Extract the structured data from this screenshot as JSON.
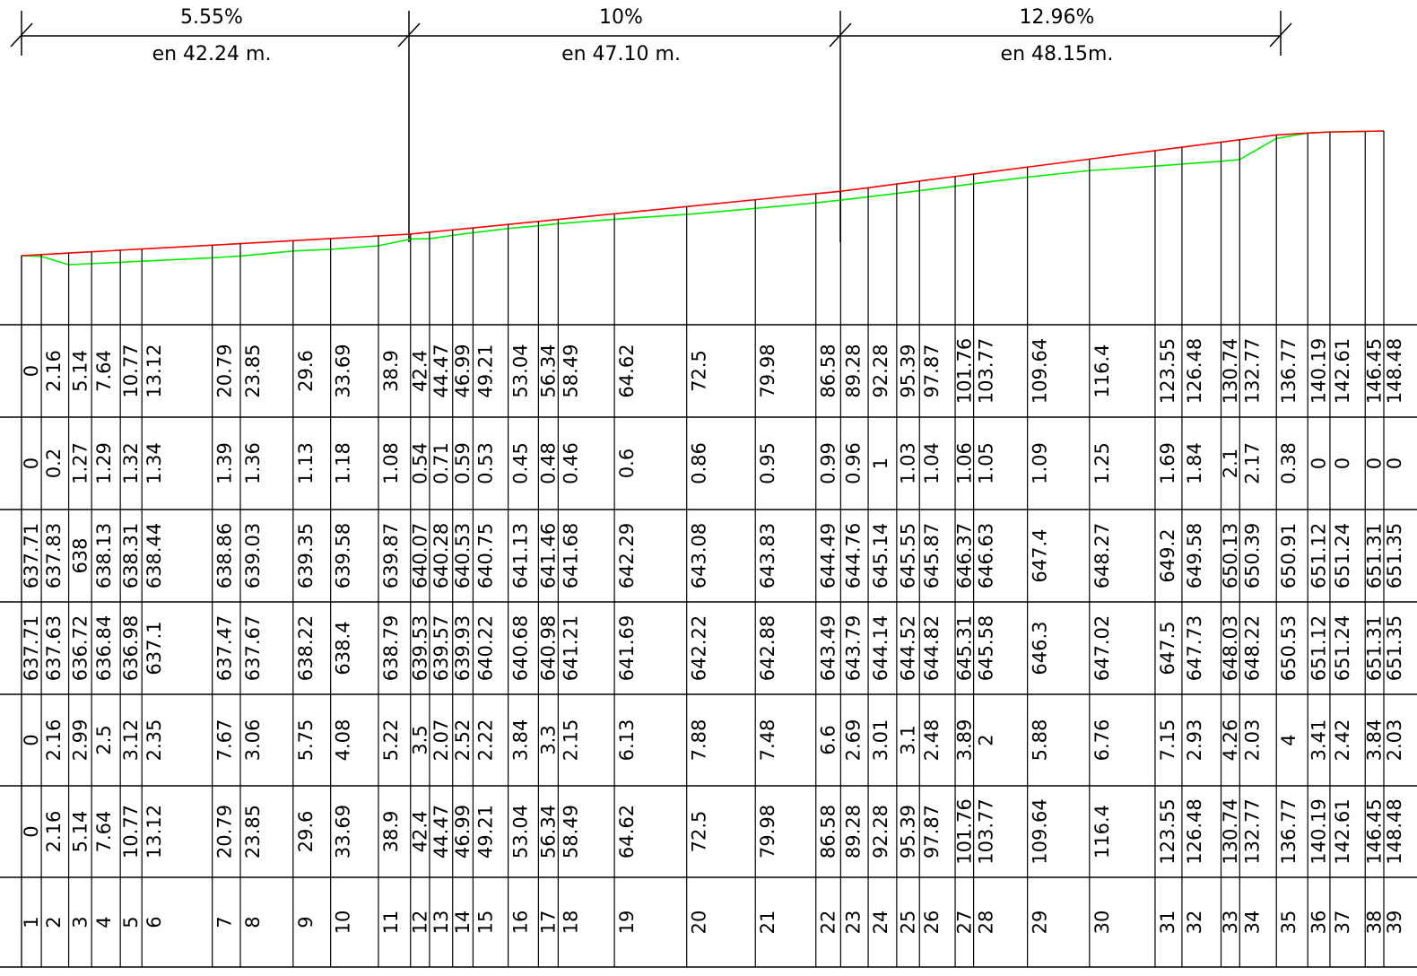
{
  "chart_data": {
    "type": "line",
    "segments": [
      {
        "grade": "5.55%",
        "length": "en  42.24  m."
      },
      {
        "grade": "10%",
        "length": "en  47.10  m."
      },
      {
        "grade": "12.96%",
        "length": "en  48.15m."
      }
    ],
    "series": [
      {
        "color": "#ff0000"
      },
      {
        "color": "#00ee00"
      }
    ],
    "columns": [
      {
        "d": "0",
        "c": "0",
        "rasante": "637.71",
        "terreno": "637.71",
        "p": "0",
        "dist": "0",
        "n": "1"
      },
      {
        "d": "2.16",
        "c": "0.2",
        "rasante": "637.83",
        "terreno": "637.63",
        "p": "2.16",
        "dist": "2.16",
        "n": "2"
      },
      {
        "d": "5.14",
        "c": "1.27",
        "rasante": "638",
        "terreno": "636.72",
        "p": "2.99",
        "dist": "5.14",
        "n": "3"
      },
      {
        "d": "7.64",
        "c": "1.29",
        "rasante": "638.13",
        "terreno": "636.84",
        "p": "2.5",
        "dist": "7.64",
        "n": "4"
      },
      {
        "d": "10.77",
        "c": "1.32",
        "rasante": "638.31",
        "terreno": "636.98",
        "p": "3.12",
        "dist": "10.77",
        "n": "5"
      },
      {
        "d": "13.12",
        "c": "1.34",
        "rasante": "638.44",
        "terreno": "637.1",
        "p": "2.35",
        "dist": "13.12",
        "n": "6"
      },
      {
        "d": "20.79",
        "c": "1.39",
        "rasante": "638.86",
        "terreno": "637.47",
        "p": "7.67",
        "dist": "20.79",
        "n": "7"
      },
      {
        "d": "23.85",
        "c": "1.36",
        "rasante": "639.03",
        "terreno": "637.67",
        "p": "3.06",
        "dist": "23.85",
        "n": "8"
      },
      {
        "d": "29.6",
        "c": "1.13",
        "rasante": "639.35",
        "terreno": "638.22",
        "p": "5.75",
        "dist": "29.6",
        "n": "9"
      },
      {
        "d": "33.69",
        "c": "1.18",
        "rasante": "639.58",
        "terreno": "638.4",
        "p": "4.08",
        "dist": "33.69",
        "n": "10"
      },
      {
        "d": "38.9",
        "c": "1.08",
        "rasante": "639.87",
        "terreno": "638.79",
        "p": "5.22",
        "dist": "38.9",
        "n": "11"
      },
      {
        "d": "42.4",
        "c": "0.54",
        "rasante": "640.07",
        "terreno": "639.53",
        "p": "3.5",
        "dist": "42.4",
        "n": "12"
      },
      {
        "d": "44.47",
        "c": "0.71",
        "rasante": "640.28",
        "terreno": "639.57",
        "p": "2.07",
        "dist": "44.47",
        "n": "13"
      },
      {
        "d": "46.99",
        "c": "0.59",
        "rasante": "640.53",
        "terreno": "639.93",
        "p": "2.52",
        "dist": "46.99",
        "n": "14"
      },
      {
        "d": "49.21",
        "c": "0.53",
        "rasante": "640.75",
        "terreno": "640.22",
        "p": "2.22",
        "dist": "49.21",
        "n": "15"
      },
      {
        "d": "53.04",
        "c": "0.45",
        "rasante": "641.13",
        "terreno": "640.68",
        "p": "3.84",
        "dist": "53.04",
        "n": "16"
      },
      {
        "d": "56.34",
        "c": "0.48",
        "rasante": "641.46",
        "terreno": "640.98",
        "p": "3.3",
        "dist": "56.34",
        "n": "17"
      },
      {
        "d": "58.49",
        "c": "0.46",
        "rasante": "641.68",
        "terreno": "641.21",
        "p": "2.15",
        "dist": "58.49",
        "n": "18"
      },
      {
        "d": "64.62",
        "c": "0.6",
        "rasante": "642.29",
        "terreno": "641.69",
        "p": "6.13",
        "dist": "64.62",
        "n": "19"
      },
      {
        "d": "72.5",
        "c": "0.86",
        "rasante": "643.08",
        "terreno": "642.22",
        "p": "7.88",
        "dist": "72.5",
        "n": "20"
      },
      {
        "d": "79.98",
        "c": "0.95",
        "rasante": "643.83",
        "terreno": "642.88",
        "p": "7.48",
        "dist": "79.98",
        "n": "21"
      },
      {
        "d": "86.58",
        "c": "0.99",
        "rasante": "644.49",
        "terreno": "643.49",
        "p": "6.6",
        "dist": "86.58",
        "n": "22"
      },
      {
        "d": "89.28",
        "c": "0.96",
        "rasante": "644.76",
        "terreno": "643.79",
        "p": "2.69",
        "dist": "89.28",
        "n": "23"
      },
      {
        "d": "92.28",
        "c": "1",
        "rasante": "645.14",
        "terreno": "644.14",
        "p": "3.01",
        "dist": "92.28",
        "n": "24"
      },
      {
        "d": "95.39",
        "c": "1.03",
        "rasante": "645.55",
        "terreno": "644.52",
        "p": "3.1",
        "dist": "95.39",
        "n": "25"
      },
      {
        "d": "97.87",
        "c": "1.04",
        "rasante": "645.87",
        "terreno": "644.82",
        "p": "2.48",
        "dist": "97.87",
        "n": "26"
      },
      {
        "d": "101.76",
        "c": "1.06",
        "rasante": "646.37",
        "terreno": "645.31",
        "p": "3.89",
        "dist": "101.76",
        "n": "27"
      },
      {
        "d": "103.77",
        "c": "1.05",
        "rasante": "646.63",
        "terreno": "645.58",
        "p": "2",
        "dist": "103.77",
        "n": "28"
      },
      {
        "d": "109.64",
        "c": "1.09",
        "rasante": "647.4",
        "terreno": "646.3",
        "p": "5.88",
        "dist": "109.64",
        "n": "29"
      },
      {
        "d": "116.4",
        "c": "1.25",
        "rasante": "648.27",
        "terreno": "647.02",
        "p": "6.76",
        "dist": "116.4",
        "n": "30"
      },
      {
        "d": "123.55",
        "c": "1.69",
        "rasante": "649.2",
        "terreno": "647.5",
        "p": "7.15",
        "dist": "123.55",
        "n": "31"
      },
      {
        "d": "126.48",
        "c": "1.84",
        "rasante": "649.58",
        "terreno": "647.73",
        "p": "2.93",
        "dist": "126.48",
        "n": "32"
      },
      {
        "d": "130.74",
        "c": "2.1",
        "rasante": "650.13",
        "terreno": "648.03",
        "p": "4.26",
        "dist": "130.74",
        "n": "33"
      },
      {
        "d": "132.77",
        "c": "2.17",
        "rasante": "650.39",
        "terreno": "648.22",
        "p": "2.03",
        "dist": "132.77",
        "n": "34"
      },
      {
        "d": "136.77",
        "c": "0.38",
        "rasante": "650.91",
        "terreno": "650.53",
        "p": "4",
        "dist": "136.77",
        "n": "35"
      },
      {
        "d": "140.19",
        "c": "0",
        "rasante": "651.12",
        "terreno": "651.12",
        "p": "3.41",
        "dist": "140.19",
        "n": "36"
      },
      {
        "d": "142.61",
        "c": "0",
        "rasante": "651.24",
        "terreno": "651.24",
        "p": "2.42",
        "dist": "142.61",
        "n": "37"
      },
      {
        "d": "146.45",
        "c": "0",
        "rasante": "651.31",
        "terreno": "651.31",
        "p": "3.84",
        "dist": "146.45",
        "n": "38"
      },
      {
        "d": "148.48",
        "c": "0",
        "rasante": "651.35",
        "terreno": "651.35",
        "p": "2.03",
        "dist": "148.48",
        "n": "39"
      }
    ]
  }
}
